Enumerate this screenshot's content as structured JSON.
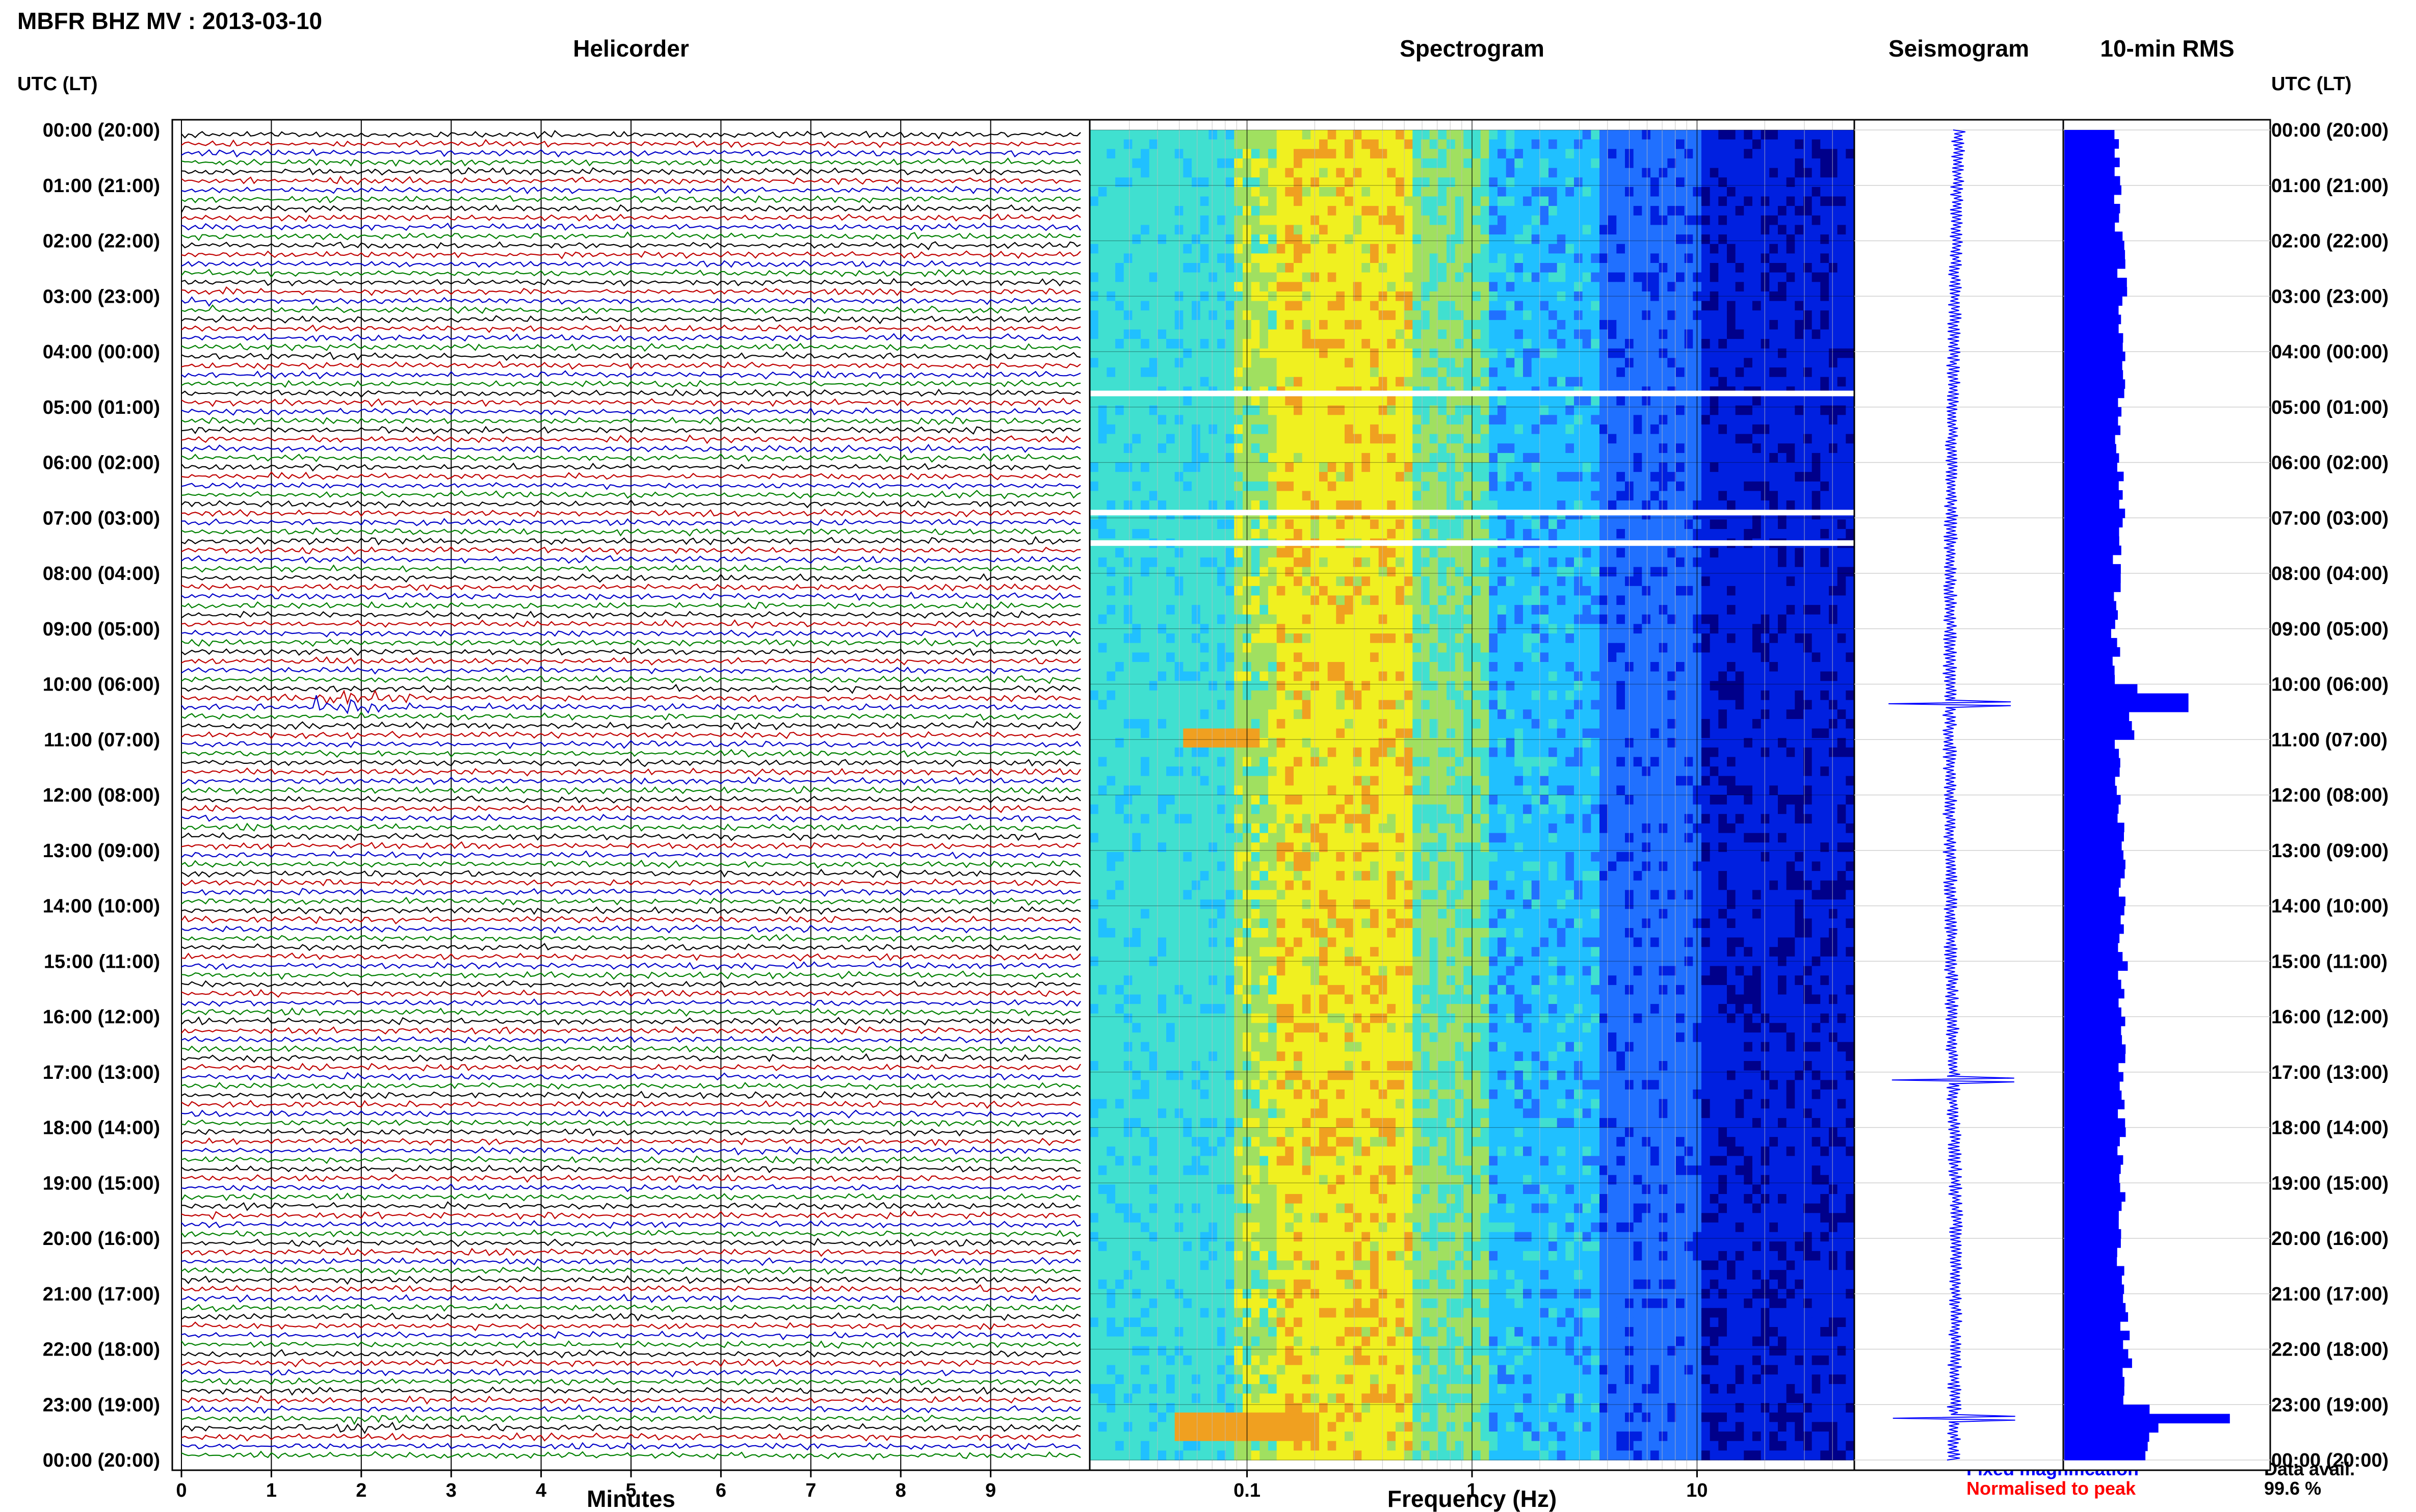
{
  "header": {
    "title": "MBFR BHZ MV : 2013-03-10"
  },
  "panels": {
    "helicorder": "Helicorder",
    "spectrogram": "Spectrogram",
    "seismogram": "Seismogram",
    "rms": "10-min RMS"
  },
  "axis_labels": {
    "utc_left": "UTC (LT)",
    "utc_right": "UTC (LT)",
    "minutes": "Minutes",
    "frequency": "Frequency (Hz)"
  },
  "legend": {
    "fixed": "Fixed magnification",
    "normalised": "Normalised to peak"
  },
  "availability": {
    "label": "Data avail.",
    "value": "99.6 %"
  },
  "chart_data": [
    {
      "type": "line",
      "title": "Helicorder",
      "xlabel": "Minutes",
      "ylabel": "UTC (LT)",
      "x_ticks": [
        "0",
        "1",
        "2",
        "3",
        "4",
        "5",
        "6",
        "7",
        "8",
        "9"
      ],
      "xlim": [
        0,
        10
      ],
      "y_ticks": [
        "00:00 (20:00)",
        "01:00 (21:00)",
        "02:00 (22:00)",
        "03:00 (23:00)",
        "04:00 (00:00)",
        "05:00 (01:00)",
        "06:00 (02:00)",
        "07:00 (03:00)",
        "08:00 (04:00)",
        "09:00 (05:00)",
        "10:00 (06:00)",
        "11:00 (07:00)",
        "12:00 (08:00)",
        "13:00 (09:00)",
        "14:00 (10:00)",
        "15:00 (11:00)",
        "16:00 (12:00)",
        "17:00 (13:00)",
        "18:00 (14:00)",
        "19:00 (15:00)",
        "20:00 (16:00)",
        "21:00 (17:00)",
        "22:00 (18:00)",
        "23:00 (19:00)",
        "00:00 (20:00)"
      ],
      "trace_colors": [
        "#000000",
        "#c00000",
        "#0000c8",
        "#008000"
      ],
      "rows_per_hour": 6,
      "events": [
        {
          "hour": 10.2,
          "minute_start": 1.5,
          "minute_end": 2.6,
          "amplitude": 4
        },
        {
          "hour": 23.2,
          "minute_start": 1.7,
          "minute_end": 6.5,
          "amplitude": 1.6
        },
        {
          "hour": 3.0,
          "minute_start": 0.3,
          "minute_end": 1.2,
          "amplitude": 1.4
        },
        {
          "hour": 16.8,
          "minute_start": 8.9,
          "minute_end": 9.0,
          "amplitude": 1.4
        }
      ]
    },
    {
      "type": "heatmap",
      "title": "Spectrogram",
      "xlabel": "Frequency (Hz)",
      "x_scale": "log",
      "xlim": [
        0.02,
        50
      ],
      "x_ticks": [
        "0.1",
        "1",
        "10"
      ],
      "colormap": [
        "#00008a",
        "#0020e0",
        "#2070ff",
        "#20c0ff",
        "#40e0d0",
        "#a0e060",
        "#f0f020",
        "#f0a020"
      ],
      "gaps_hours": [
        4.75,
        6.9,
        7.45
      ]
    },
    {
      "type": "line",
      "title": "Seismogram",
      "events_hours": [
        10.35,
        17.15,
        23.25
      ]
    },
    {
      "type": "bar",
      "title": "10-min RMS",
      "orientation": "horizontal",
      "categories": [
        "00:00",
        "01:00",
        "02:00",
        "03:00",
        "04:00",
        "05:00",
        "06:00",
        "07:00",
        "08:00",
        "09:00",
        "10:00",
        "11:00",
        "12:00",
        "13:00",
        "14:00",
        "15:00",
        "16:00",
        "17:00",
        "18:00",
        "19:00",
        "20:00",
        "21:00",
        "22:00",
        "23:00"
      ],
      "values": [
        0.25,
        0.26,
        0.28,
        0.29,
        0.28,
        0.27,
        0.27,
        0.26,
        0.26,
        0.25,
        0.33,
        0.26,
        0.27,
        0.27,
        0.28,
        0.28,
        0.28,
        0.28,
        0.27,
        0.27,
        0.28,
        0.29,
        0.3,
        0.42
      ],
      "peaks": [
        {
          "hour": 10.25,
          "value": 0.6
        },
        {
          "hour": 23.15,
          "value": 0.8
        }
      ]
    }
  ]
}
